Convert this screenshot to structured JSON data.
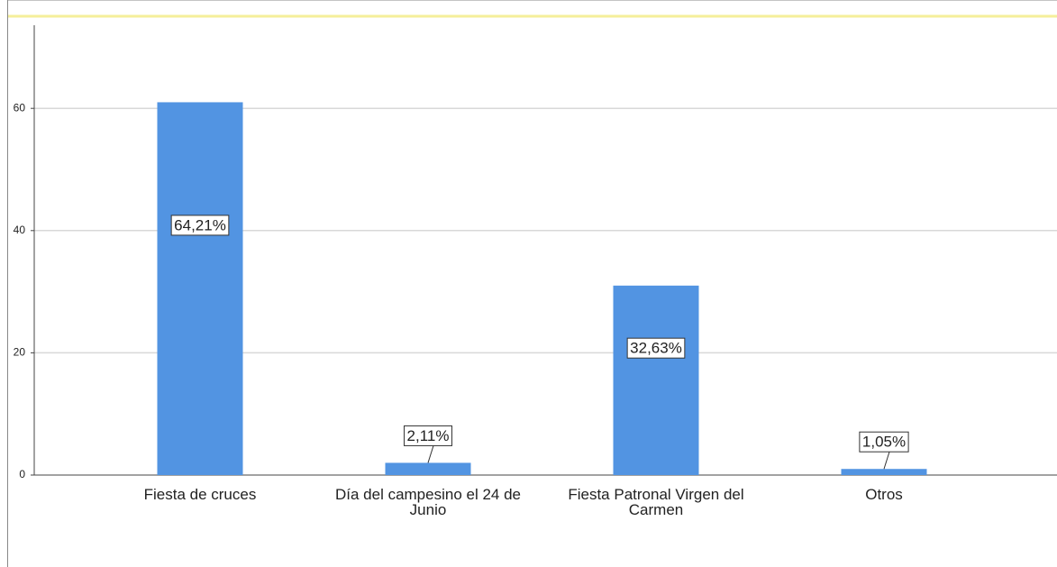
{
  "chart_data": {
    "type": "bar",
    "categories": [
      "Fiesta de cruces",
      "Día del campesino el 24 de Junio",
      "Fiesta Patronal Virgen del Carmen",
      "Otros"
    ],
    "values": [
      61,
      2,
      31,
      1
    ],
    "percentages": [
      64.21,
      2.11,
      32.63,
      1.05
    ],
    "percentage_labels": [
      "64,21%",
      "2,11%",
      "32,63%",
      "1,05%"
    ],
    "color": "#5294e2",
    "ylim": [
      0,
      73.6
    ],
    "yticks": [
      0,
      20,
      40,
      60
    ],
    "grid": true
  }
}
